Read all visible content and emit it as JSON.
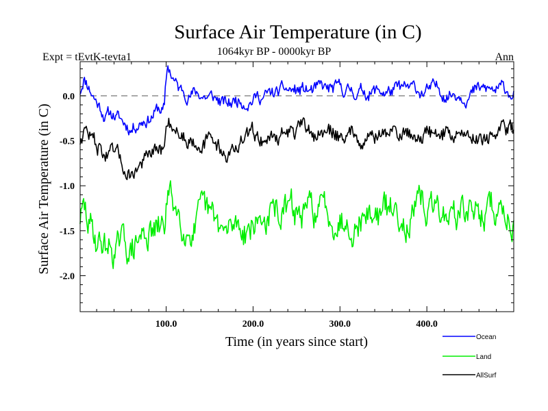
{
  "chart_data": {
    "type": "line",
    "title": "Surface Air Temperature (in C)",
    "subtitle_left": "Expt = tEvtK-tevta1",
    "subtitle_center": "1064kyr BP - 0000kyr BP",
    "subtitle_right": "Ann",
    "xlabel": "Time (in years since start)",
    "ylabel": "Surface Air Temperature (in C)",
    "xlim": [
      1,
      500
    ],
    "ylim": [
      -2.4,
      0.38
    ],
    "x_ticks": [
      {
        "value": 100,
        "label": "100.0"
      },
      {
        "value": 200,
        "label": "200.0"
      },
      {
        "value": 300,
        "label": "300.0"
      },
      {
        "value": 400,
        "label": "400.0"
      }
    ],
    "y_ticks": [
      {
        "value": 0.0,
        "label": "0.0"
      },
      {
        "value": -0.5,
        "label": "-0.5"
      },
      {
        "value": -1.0,
        "label": "-1.0"
      },
      {
        "value": -1.5,
        "label": "-1.5"
      },
      {
        "value": -2.0,
        "label": "-2.0"
      }
    ],
    "reference_line": {
      "y": 0.0,
      "style": "dashed"
    },
    "series": [
      {
        "name": "Ocean",
        "color": "#0000ff",
        "anchors_x": [
          1,
          5,
          10,
          20,
          30,
          40,
          50,
          60,
          70,
          80,
          90,
          98,
          100,
          102,
          108,
          115,
          125,
          140,
          160,
          170,
          180,
          200,
          220,
          240,
          260,
          280,
          300,
          320,
          340,
          360,
          380,
          400,
          420,
          440,
          460,
          480,
          500
        ],
        "anchors_y": [
          0.05,
          0.22,
          0.15,
          -0.05,
          -0.2,
          -0.2,
          -0.3,
          -0.35,
          -0.25,
          -0.22,
          -0.15,
          -0.15,
          0.15,
          0.3,
          0.2,
          0.05,
          0.05,
          0.02,
          -0.05,
          -0.12,
          -0.05,
          0.0,
          0.0,
          0.05,
          0.05,
          0.05,
          0.05,
          0.05,
          0.05,
          0.05,
          0.05,
          0.05,
          0.05,
          0.05,
          0.05,
          0.05,
          0.05
        ],
        "noise_amplitude": 0.09,
        "seed": 11
      },
      {
        "name": "Land",
        "color": "#00ee00",
        "anchors_x": [
          1,
          5,
          10,
          20,
          30,
          40,
          50,
          60,
          70,
          80,
          90,
          98,
          100,
          102,
          108,
          115,
          125,
          140,
          160,
          170,
          180,
          200,
          220,
          240,
          260,
          280,
          300,
          320,
          340,
          360,
          380,
          400,
          420,
          440,
          460,
          480,
          500
        ],
        "anchors_y": [
          -1.35,
          -1.3,
          -1.45,
          -1.6,
          -1.65,
          -1.7,
          -1.7,
          -1.75,
          -1.6,
          -1.5,
          -1.55,
          -1.5,
          -1.2,
          -1.1,
          -1.2,
          -1.3,
          -1.4,
          -1.4,
          -1.5,
          -1.6,
          -1.45,
          -1.4,
          -1.35,
          -1.3,
          -1.35,
          -1.3,
          -1.3,
          -1.3,
          -1.3,
          -1.3,
          -1.3,
          -1.3,
          -1.3,
          -1.3,
          -1.3,
          -1.3,
          -1.3
        ],
        "noise_amplitude": 0.2,
        "seed": 29
      },
      {
        "name": "AllSurf",
        "color": "#000000",
        "anchors_x": [
          1,
          5,
          10,
          20,
          30,
          40,
          50,
          60,
          70,
          80,
          90,
          98,
          100,
          102,
          108,
          115,
          125,
          140,
          160,
          170,
          180,
          200,
          220,
          240,
          260,
          280,
          300,
          320,
          340,
          360,
          380,
          400,
          420,
          440,
          460,
          480,
          500
        ],
        "anchors_y": [
          -0.5,
          -0.35,
          -0.4,
          -0.55,
          -0.65,
          -0.7,
          -0.8,
          -0.85,
          -0.75,
          -0.7,
          -0.65,
          -0.65,
          -0.35,
          -0.25,
          -0.3,
          -0.4,
          -0.45,
          -0.45,
          -0.55,
          -0.65,
          -0.55,
          -0.45,
          -0.45,
          -0.4,
          -0.42,
          -0.42,
          -0.42,
          -0.42,
          -0.42,
          -0.42,
          -0.42,
          -0.42,
          -0.42,
          -0.42,
          -0.42,
          -0.42,
          -0.42
        ],
        "noise_amplitude": 0.11,
        "seed": 47
      }
    ],
    "legend": {
      "placement": "bottom-right",
      "entries": [
        "Ocean",
        "Land",
        "AllSurf"
      ]
    }
  }
}
